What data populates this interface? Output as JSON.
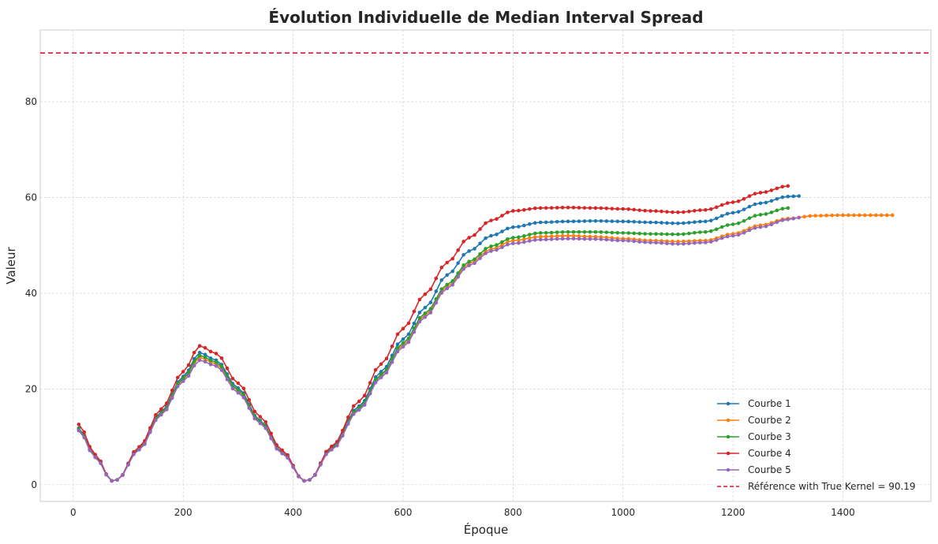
{
  "chart_data": {
    "type": "line",
    "title": "Évolution Individuelle de Median Interval Spread",
    "xlabel": "Époque",
    "ylabel": "Valeur",
    "xlim": [
      -60,
      1560
    ],
    "ylim": [
      -3.5,
      95
    ],
    "xticks": [
      0,
      200,
      400,
      600,
      800,
      1000,
      1200,
      1400
    ],
    "yticks": [
      0,
      20,
      40,
      60,
      80
    ],
    "grid": true,
    "legend_position": "bottom-right",
    "x_step": 10,
    "series": [
      {
        "name": "Courbe 1",
        "color": "#1f77b4",
        "x_end": 1320,
        "keypoints": [
          [
            10,
            11.8
          ],
          [
            40,
            6.0
          ],
          [
            70,
            0.8
          ],
          [
            80,
            1.0
          ],
          [
            120,
            7.6
          ],
          [
            160,
            15.2
          ],
          [
            200,
            22.6
          ],
          [
            230,
            27.6
          ],
          [
            260,
            26.0
          ],
          [
            300,
            20.2
          ],
          [
            340,
            13.4
          ],
          [
            380,
            6.8
          ],
          [
            420,
            0.8
          ],
          [
            430,
            1.0
          ],
          [
            470,
            7.8
          ],
          [
            520,
            16.4
          ],
          [
            560,
            23.6
          ],
          [
            600,
            30.4
          ],
          [
            640,
            37.0
          ],
          [
            680,
            43.8
          ],
          [
            720,
            48.8
          ],
          [
            760,
            52.0
          ],
          [
            800,
            53.8
          ],
          [
            850,
            54.8
          ],
          [
            900,
            55.0
          ],
          [
            950,
            55.1
          ],
          [
            1000,
            55.0
          ],
          [
            1050,
            54.8
          ],
          [
            1100,
            54.6
          ],
          [
            1150,
            55.0
          ],
          [
            1200,
            56.8
          ],
          [
            1250,
            58.8
          ],
          [
            1300,
            60.2
          ],
          [
            1320,
            60.3
          ]
        ]
      },
      {
        "name": "Courbe 2",
        "color": "#ff7f0e",
        "x_end": 1490,
        "keypoints": [
          [
            10,
            11.5
          ],
          [
            40,
            5.8
          ],
          [
            70,
            0.8
          ],
          [
            80,
            1.0
          ],
          [
            120,
            7.4
          ],
          [
            160,
            14.8
          ],
          [
            200,
            22.0
          ],
          [
            230,
            26.6
          ],
          [
            260,
            25.2
          ],
          [
            300,
            19.6
          ],
          [
            340,
            13.0
          ],
          [
            380,
            6.6
          ],
          [
            420,
            0.8
          ],
          [
            430,
            1.0
          ],
          [
            470,
            7.4
          ],
          [
            520,
            15.8
          ],
          [
            560,
            22.8
          ],
          [
            600,
            29.2
          ],
          [
            640,
            35.4
          ],
          [
            680,
            41.4
          ],
          [
            720,
            46.2
          ],
          [
            760,
            49.2
          ],
          [
            800,
            51.0
          ],
          [
            850,
            51.8
          ],
          [
            900,
            52.0
          ],
          [
            950,
            51.8
          ],
          [
            1000,
            51.4
          ],
          [
            1050,
            51.0
          ],
          [
            1100,
            50.8
          ],
          [
            1150,
            51.0
          ],
          [
            1200,
            52.4
          ],
          [
            1250,
            54.2
          ],
          [
            1300,
            55.6
          ],
          [
            1350,
            56.2
          ],
          [
            1400,
            56.3
          ],
          [
            1450,
            56.3
          ],
          [
            1490,
            56.3
          ]
        ]
      },
      {
        "name": "Courbe 3",
        "color": "#2ca02c",
        "x_end": 1300,
        "keypoints": [
          [
            10,
            11.6
          ],
          [
            40,
            5.9
          ],
          [
            70,
            0.8
          ],
          [
            80,
            1.0
          ],
          [
            120,
            7.5
          ],
          [
            160,
            15.0
          ],
          [
            200,
            22.2
          ],
          [
            230,
            27.0
          ],
          [
            260,
            25.6
          ],
          [
            300,
            19.8
          ],
          [
            340,
            13.2
          ],
          [
            380,
            6.7
          ],
          [
            420,
            0.8
          ],
          [
            430,
            1.0
          ],
          [
            470,
            7.6
          ],
          [
            520,
            16.0
          ],
          [
            560,
            23.0
          ],
          [
            600,
            29.6
          ],
          [
            640,
            35.8
          ],
          [
            680,
            41.8
          ],
          [
            720,
            46.6
          ],
          [
            760,
            49.8
          ],
          [
            800,
            51.6
          ],
          [
            850,
            52.6
          ],
          [
            900,
            52.8
          ],
          [
            950,
            52.8
          ],
          [
            1000,
            52.6
          ],
          [
            1050,
            52.4
          ],
          [
            1100,
            52.3
          ],
          [
            1150,
            52.8
          ],
          [
            1200,
            54.4
          ],
          [
            1250,
            56.4
          ],
          [
            1300,
            57.8
          ]
        ]
      },
      {
        "name": "Courbe 4",
        "color": "#d62728",
        "x_end": 1300,
        "keypoints": [
          [
            10,
            12.6
          ],
          [
            40,
            6.3
          ],
          [
            70,
            0.8
          ],
          [
            80,
            1.0
          ],
          [
            120,
            7.9
          ],
          [
            160,
            15.8
          ],
          [
            200,
            23.6
          ],
          [
            230,
            29.0
          ],
          [
            260,
            27.4
          ],
          [
            300,
            21.2
          ],
          [
            340,
            14.2
          ],
          [
            380,
            7.2
          ],
          [
            420,
            0.8
          ],
          [
            430,
            1.0
          ],
          [
            470,
            8.0
          ],
          [
            520,
            17.4
          ],
          [
            560,
            25.2
          ],
          [
            600,
            32.6
          ],
          [
            640,
            39.8
          ],
          [
            680,
            46.4
          ],
          [
            720,
            51.6
          ],
          [
            760,
            55.2
          ],
          [
            800,
            57.2
          ],
          [
            850,
            57.8
          ],
          [
            900,
            57.9
          ],
          [
            950,
            57.8
          ],
          [
            1000,
            57.6
          ],
          [
            1050,
            57.2
          ],
          [
            1100,
            56.9
          ],
          [
            1150,
            57.4
          ],
          [
            1200,
            59.0
          ],
          [
            1250,
            61.0
          ],
          [
            1300,
            62.4
          ]
        ]
      },
      {
        "name": "Courbe 5",
        "color": "#9467bd",
        "x_end": 1320,
        "keypoints": [
          [
            10,
            11.3
          ],
          [
            40,
            5.7
          ],
          [
            70,
            0.8
          ],
          [
            80,
            1.0
          ],
          [
            120,
            7.3
          ],
          [
            160,
            14.6
          ],
          [
            200,
            21.6
          ],
          [
            230,
            26.0
          ],
          [
            260,
            24.8
          ],
          [
            300,
            19.2
          ],
          [
            340,
            12.8
          ],
          [
            380,
            6.5
          ],
          [
            420,
            0.8
          ],
          [
            430,
            1.0
          ],
          [
            470,
            7.3
          ],
          [
            520,
            15.6
          ],
          [
            560,
            22.4
          ],
          [
            600,
            28.8
          ],
          [
            640,
            35.0
          ],
          [
            680,
            41.0
          ],
          [
            720,
            45.8
          ],
          [
            760,
            48.8
          ],
          [
            800,
            50.4
          ],
          [
            850,
            51.2
          ],
          [
            900,
            51.4
          ],
          [
            950,
            51.3
          ],
          [
            1000,
            51.0
          ],
          [
            1050,
            50.6
          ],
          [
            1100,
            50.3
          ],
          [
            1150,
            50.6
          ],
          [
            1200,
            52.0
          ],
          [
            1250,
            53.8
          ],
          [
            1300,
            55.4
          ],
          [
            1320,
            55.8
          ]
        ]
      }
    ],
    "reference_line": {
      "label": "Référence with True Kernel = 90.19",
      "value": 90.19,
      "color": "#dc143c",
      "style": "dashed"
    }
  }
}
